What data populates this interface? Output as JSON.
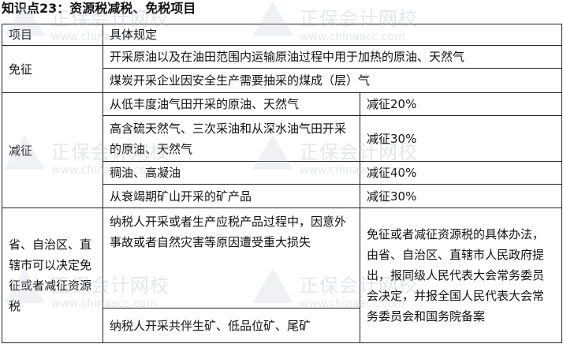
{
  "title": "知识点23：资源税减税、免税项目",
  "watermark": {
    "name": "正保会计网校",
    "url": "www.chinaacc.com"
  },
  "table": {
    "headers": [
      "项目",
      "具体规定"
    ],
    "exempt": {
      "label": "免征",
      "items": [
        "开采原油以及在油田范围内运输原油过程中用于加热的原油、天然气",
        "煤炭开采企业因安全生产需要抽采的煤成（层）气"
      ]
    },
    "reduced": {
      "label": "减征",
      "items": [
        {
          "text": "从低丰度油气田开采的原油、天然气",
          "rate": "减征20%"
        },
        {
          "text": "高含硫天然气、三次采油和从深水油气田开采的原油、天然气",
          "rate": "减征30%"
        },
        {
          "text": "稠油、高凝油",
          "rate": "减征40%"
        },
        {
          "text": "从衰竭期矿山开采的矿产品",
          "rate": "减征30%"
        }
      ]
    },
    "provincial": {
      "label": "省、自治区、直辖市可以决定免征或者减征资源税",
      "items": [
        "纳税人开采或者生产应税产品过程中，因意外事故或者自然灾害等原因遭受重大损失",
        "纳税人开采共伴生矿、低品位矿、尾矿"
      ],
      "note": "免征或者减征资源税的具体办法，由省、自治区、直辖市人民政府提出，报同级人民代表大会常务委员会决定，并报全国人民代表大会常务委员会和国务院备案"
    }
  }
}
